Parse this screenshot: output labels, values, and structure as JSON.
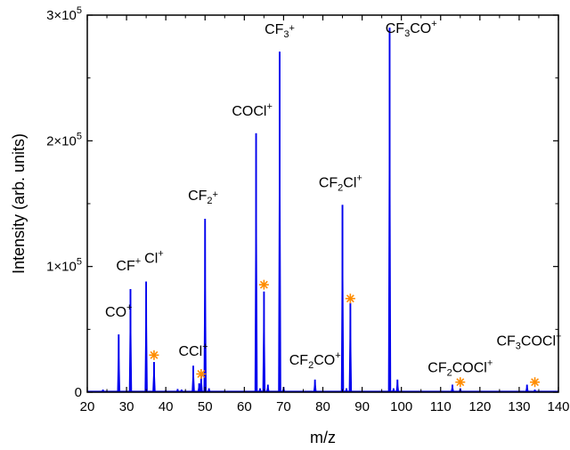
{
  "chart_data": {
    "type": "line",
    "title": "",
    "xlabel": "m/z",
    "ylabel": "Intensity (arb. units)",
    "xlim": [
      20,
      140
    ],
    "ylim": [
      0,
      300000
    ],
    "x_ticks": [
      "20",
      "30",
      "40",
      "50",
      "60",
      "70",
      "80",
      "90",
      "100",
      "110",
      "120",
      "130",
      "140"
    ],
    "y_ticks": [
      {
        "value": 0,
        "mantissa": "0",
        "exp": ""
      },
      {
        "value": 100000,
        "mantissa": "1×10",
        "exp": "5"
      },
      {
        "value": 200000,
        "mantissa": "2×10",
        "exp": "5"
      },
      {
        "value": 300000,
        "mantissa": "3×10",
        "exp": "5"
      }
    ],
    "grid": false,
    "series": [
      {
        "color": "#0000ee",
        "peaks": [
          {
            "x": 24,
            "y": 2000
          },
          {
            "x": 28,
            "y": 46000
          },
          {
            "x": 31,
            "y": 82000
          },
          {
            "x": 35,
            "y": 88000
          },
          {
            "x": 37,
            "y": 24000
          },
          {
            "x": 40,
            "y": 1500
          },
          {
            "x": 43,
            "y": 2500
          },
          {
            "x": 44,
            "y": 2000
          },
          {
            "x": 47,
            "y": 21000
          },
          {
            "x": 48.5,
            "y": 7000
          },
          {
            "x": 49,
            "y": 14000
          },
          {
            "x": 50,
            "y": 138000
          },
          {
            "x": 51,
            "y": 3000
          },
          {
            "x": 63,
            "y": 206000
          },
          {
            "x": 64,
            "y": 3000
          },
          {
            "x": 65,
            "y": 80000
          },
          {
            "x": 66,
            "y": 6000
          },
          {
            "x": 69,
            "y": 271000
          },
          {
            "x": 70,
            "y": 4000
          },
          {
            "x": 78,
            "y": 10000
          },
          {
            "x": 85,
            "y": 149000
          },
          {
            "x": 86,
            "y": 3000
          },
          {
            "x": 87,
            "y": 71000
          },
          {
            "x": 97,
            "y": 290000
          },
          {
            "x": 98,
            "y": 3000
          },
          {
            "x": 99,
            "y": 10000
          },
          {
            "x": 113,
            "y": 6000
          },
          {
            "x": 115,
            "y": 3000
          },
          {
            "x": 132,
            "y": 6000
          },
          {
            "x": 134,
            "y": 2000
          }
        ]
      }
    ],
    "markers": {
      "symbol": "*",
      "color": "#ff8c00",
      "points": [
        {
          "x": 37,
          "y": 29500
        },
        {
          "x": 49,
          "y": 14500
        },
        {
          "x": 65,
          "y": 85500
        },
        {
          "x": 87,
          "y": 74500
        },
        {
          "x": 115,
          "y": 8000
        },
        {
          "x": 134,
          "y": 8000
        }
      ]
    },
    "annotations": [
      {
        "x": 28,
        "y": 60000,
        "parts": [
          {
            "t": "CO"
          },
          {
            "t": "+",
            "s": "sup"
          }
        ]
      },
      {
        "x": 30.5,
        "y": 97000,
        "parts": [
          {
            "t": "CF"
          },
          {
            "t": "+",
            "s": "sup"
          }
        ]
      },
      {
        "x": 37,
        "y": 103000,
        "parts": [
          {
            "t": "Cl"
          },
          {
            "t": "+",
            "s": "sup"
          }
        ]
      },
      {
        "x": 47,
        "y": 29000,
        "parts": [
          {
            "t": "CCl"
          },
          {
            "t": "+",
            "s": "sup"
          }
        ]
      },
      {
        "x": 49.5,
        "y": 153000,
        "parts": [
          {
            "t": "CF"
          },
          {
            "t": "2",
            "s": "sub"
          },
          {
            "t": "+",
            "s": "sup"
          }
        ]
      },
      {
        "x": 62,
        "y": 220000,
        "parts": [
          {
            "t": "COCl"
          },
          {
            "t": "+",
            "s": "sup"
          }
        ]
      },
      {
        "x": 69,
        "y": 285000,
        "parts": [
          {
            "t": "CF"
          },
          {
            "t": "3",
            "s": "sub"
          },
          {
            "t": "+",
            "s": "sup"
          }
        ]
      },
      {
        "x": 78,
        "y": 22000,
        "parts": [
          {
            "t": "CF"
          },
          {
            "t": "2",
            "s": "sub"
          },
          {
            "t": "CO"
          },
          {
            "t": "+",
            "s": "sup"
          }
        ]
      },
      {
        "x": 84.5,
        "y": 163000,
        "parts": [
          {
            "t": "CF"
          },
          {
            "t": "2",
            "s": "sub"
          },
          {
            "t": "Cl"
          },
          {
            "t": "+",
            "s": "sup"
          }
        ]
      },
      {
        "x": 102.5,
        "y": 286000,
        "parts": [
          {
            "t": "CF"
          },
          {
            "t": "3",
            "s": "sub"
          },
          {
            "t": "CO"
          },
          {
            "t": "+",
            "s": "sup"
          }
        ]
      },
      {
        "x": 115,
        "y": 16000,
        "parts": [
          {
            "t": "CF"
          },
          {
            "t": "2",
            "s": "sub"
          },
          {
            "t": "COCl"
          },
          {
            "t": "+",
            "s": "sup"
          }
        ]
      },
      {
        "x": 132.5,
        "y": 37000,
        "parts": [
          {
            "t": "CF"
          },
          {
            "t": "3",
            "s": "sub"
          },
          {
            "t": "COCl"
          },
          {
            "t": "+",
            "s": "sup"
          }
        ]
      }
    ]
  }
}
